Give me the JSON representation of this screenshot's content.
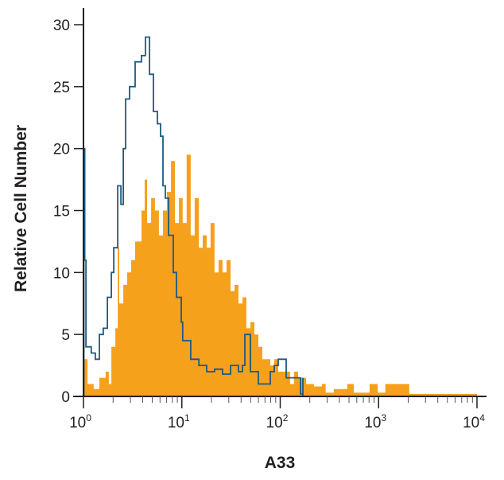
{
  "chart_data": {
    "type": "area",
    "title": "",
    "xlabel": "A33",
    "ylabel": "Relative Cell Number",
    "x_scale": "log",
    "xlim": [
      1,
      10000
    ],
    "ylim": [
      0,
      30
    ],
    "grid": false,
    "legend": "none",
    "x_ticks": [
      {
        "value": 1,
        "base": "10",
        "exp": "0"
      },
      {
        "value": 10,
        "base": "10",
        "exp": "1"
      },
      {
        "value": 100,
        "base": "10",
        "exp": "2"
      },
      {
        "value": 1000,
        "base": "10",
        "exp": "3"
      },
      {
        "value": 10000,
        "base": "10",
        "exp": "4"
      }
    ],
    "y_ticks": [
      {
        "value": 0,
        "label": "0"
      },
      {
        "value": 5,
        "label": "5"
      },
      {
        "value": 10,
        "label": "10"
      },
      {
        "value": 15,
        "label": "15"
      },
      {
        "value": 20,
        "label": "20"
      },
      {
        "value": 25,
        "label": "25"
      },
      {
        "value": 30,
        "label": "30"
      }
    ],
    "series": [
      {
        "style": "filled",
        "color": "#f5a11c",
        "x": [
          1.0,
          1.1,
          1.27,
          1.45,
          1.68,
          1.81,
          1.92,
          2.11,
          2.23,
          2.31,
          2.54,
          2.78,
          3.05,
          3.35,
          3.89,
          4.19,
          4.43,
          4.87,
          5.33,
          5.85,
          6.43,
          7.06,
          7.75,
          8.51,
          9.34,
          10.2,
          11.2,
          12.3,
          13.5,
          14.9,
          16.3,
          17.9,
          19.6,
          21.5,
          23.6,
          25.9,
          28.5,
          31.3,
          34.3,
          37.6,
          41.3,
          45.3,
          49.8,
          54.6,
          59.9,
          65.8,
          72.2,
          79.3,
          86.9,
          95.5,
          115,
          126,
          138,
          152,
          183,
          220,
          265,
          290,
          350,
          480,
          560,
          810,
          980,
          1170,
          1700,
          2050,
          10000
        ],
        "y": [
          3,
          1,
          0.6,
          1.5,
          2,
          1,
          4,
          5.5,
          12,
          7.5,
          9,
          10,
          11,
          12.5,
          15,
          17.5,
          14,
          16,
          15,
          13,
          15,
          16.5,
          19,
          14,
          16,
          14,
          19.5,
          13,
          16,
          12,
          13,
          12,
          14,
          10,
          11,
          10,
          11,
          8.5,
          9,
          7.5,
          8,
          5.5,
          6,
          5,
          4,
          3,
          3,
          2.5,
          3,
          2,
          2,
          1,
          2,
          1.5,
          1,
          0.8,
          1,
          0.3,
          0.6,
          1,
          0.3,
          1,
          0.3,
          1,
          1,
          0.2,
          0.2
        ]
      },
      {
        "style": "line",
        "color": "#1d5a82",
        "x": [
          1.0,
          1.01,
          1.03,
          1.06,
          1.2,
          1.32,
          1.45,
          1.59,
          1.75,
          1.92,
          2.03,
          2.23,
          2.4,
          2.54,
          2.68,
          2.94,
          3.35,
          3.89,
          4.27,
          4.69,
          5.14,
          5.64,
          6.08,
          6.43,
          6.8,
          7.32,
          8.19,
          8.82,
          9.86,
          10.2,
          12.3,
          14.9,
          17.9,
          21.5,
          25.9,
          31.3,
          37.6,
          41.3,
          43.7,
          49.8,
          59.9,
          65.8,
          79.3,
          86.9,
          95.5,
          115,
          138,
          161,
          170
        ],
        "y": [
          0,
          20,
          11,
          4,
          3.5,
          3,
          5,
          5.5,
          8,
          10,
          12,
          17,
          15.5,
          20,
          24,
          25,
          27,
          27.5,
          29,
          26,
          23,
          22,
          21,
          17,
          16,
          13,
          10,
          8,
          6,
          4.5,
          3,
          2.5,
          2,
          2.2,
          1.8,
          2.5,
          2,
          2.5,
          5,
          2,
          1,
          1,
          2,
          2.5,
          3,
          1.5,
          1.5,
          0.2,
          1.5
        ]
      }
    ]
  }
}
